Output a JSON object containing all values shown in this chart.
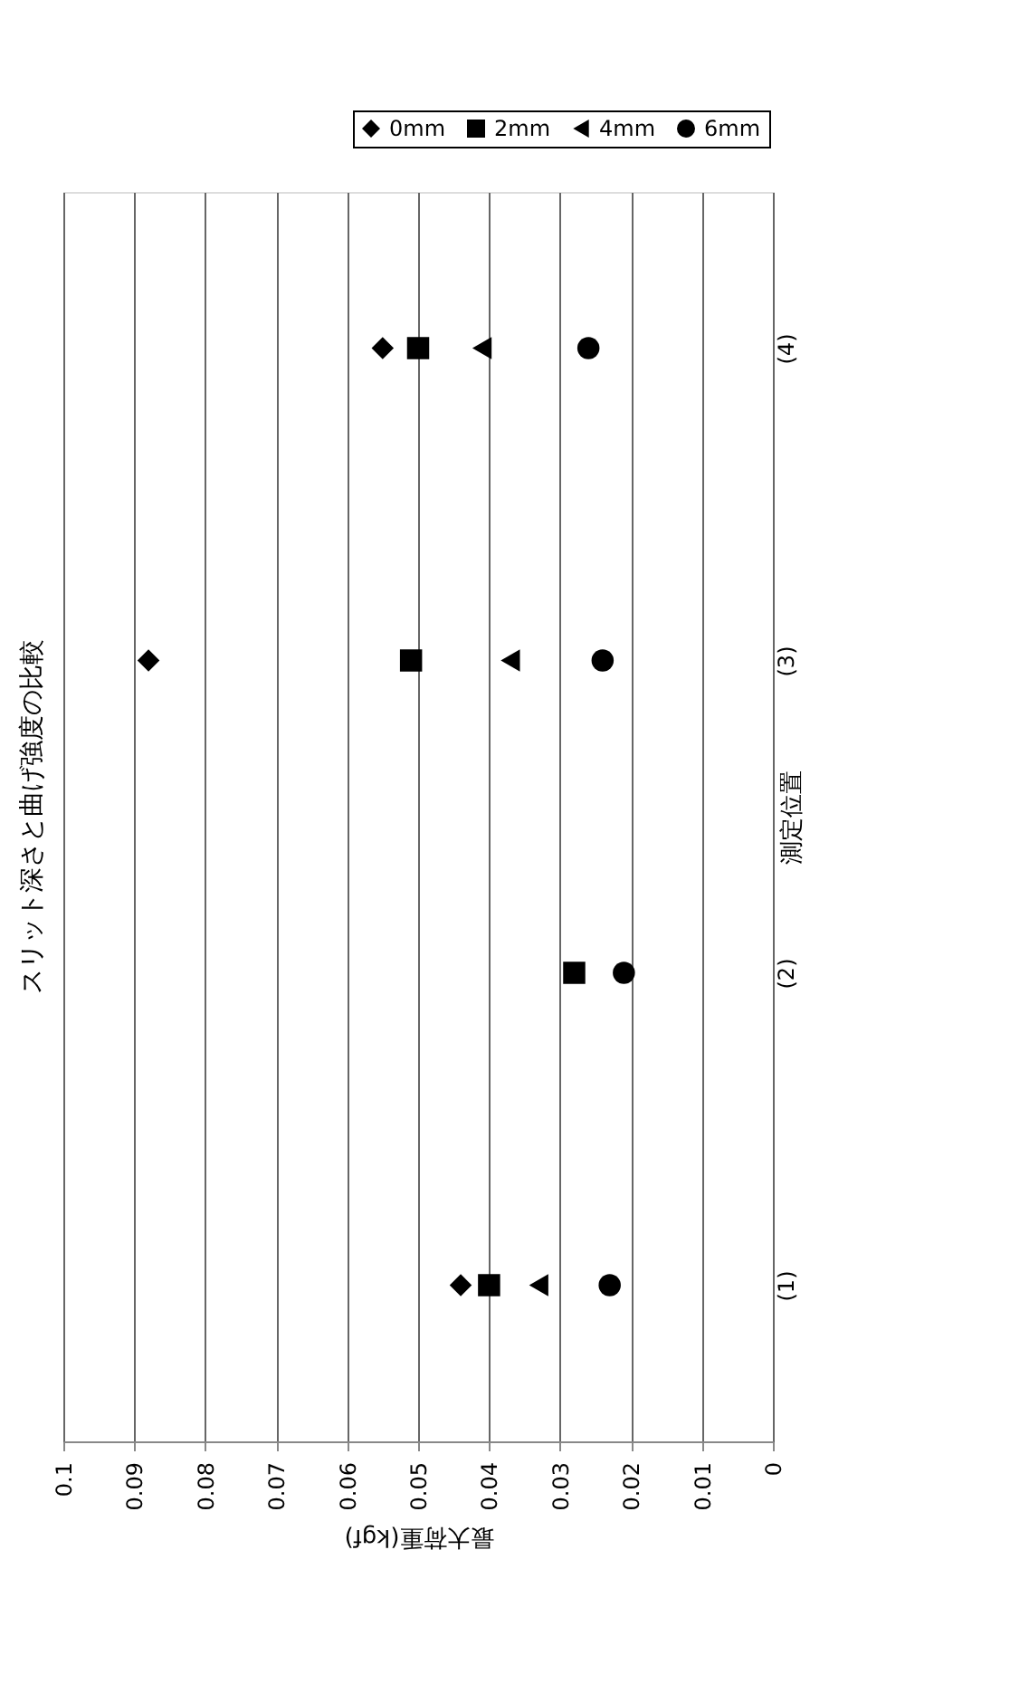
{
  "chart_data": {
    "type": "scatter",
    "orientation": "horizontal",
    "title": "スリット深さと曲げ強度の比較",
    "xlabel": "最大荷重(kgf)",
    "ylabel": "測定位置",
    "categories": [
      "(4)",
      "(3)",
      "(2)",
      "(1)"
    ],
    "series": [
      {
        "name": "0mm",
        "color": "#000000",
        "marker": "diamond",
        "values": [
          0.055,
          0.088,
          null,
          0.044
        ]
      },
      {
        "name": "2mm",
        "color": "#000000",
        "marker": "square",
        "values": [
          0.05,
          0.051,
          0.028,
          0.04
        ]
      },
      {
        "name": "4mm",
        "color": "#000000",
        "marker": "triangle",
        "values": [
          0.041,
          0.037,
          null,
          0.033
        ]
      },
      {
        "name": "6mm",
        "color": "#000000",
        "marker": "circle",
        "values": [
          0.026,
          0.024,
          0.021,
          0.023
        ]
      }
    ],
    "xlim": [
      0.1,
      0
    ],
    "xticks": [
      0.1,
      0.09,
      0.08,
      0.07,
      0.06,
      0.05,
      0.04,
      0.03,
      0.02,
      0.01,
      0
    ],
    "grid": "x",
    "legend": "top right"
  }
}
